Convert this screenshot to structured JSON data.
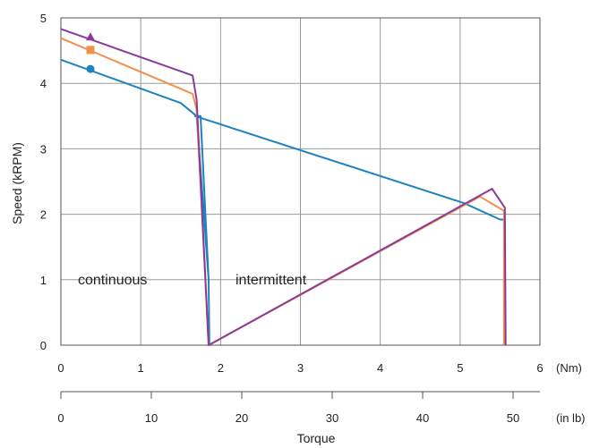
{
  "chart_data": {
    "type": "line",
    "title": "",
    "ylabel": "Speed (kRPM)",
    "xlabel": "Torque",
    "x_unit": "(Nm)",
    "x2_unit": "(in lb)",
    "xlim": [
      0,
      6
    ],
    "ylim": [
      0,
      5
    ],
    "x_ticks": [
      "0",
      "1",
      "2",
      "3",
      "4",
      "5",
      "6"
    ],
    "x2_ticks": [
      "0",
      "10",
      "20",
      "30",
      "40",
      "50"
    ],
    "y_ticks": [
      "0",
      "1",
      "2",
      "3",
      "4",
      "5"
    ],
    "grid": true,
    "annotations": [
      "continuous",
      "intermittent"
    ],
    "series": [
      {
        "color": "#1f82c0",
        "marker": "circle",
        "marker_point": [
          0.37,
          4.22
        ],
        "x": [
          0.0,
          1.5,
          1.7,
          1.85,
          1.86,
          1.85,
          1.75,
          1.68,
          5.05,
          5.5,
          5.55,
          5.55
        ],
        "y": [
          4.36,
          3.7,
          3.5,
          1.0,
          0.0,
          1.0,
          3.5,
          3.5,
          2.17,
          1.92,
          1.92,
          0.0
        ]
      },
      {
        "color": "#f0914c",
        "marker": "square",
        "marker_point": [
          0.37,
          4.51
        ],
        "x": [
          0.0,
          1.65,
          1.7,
          1.85,
          5.25,
          5.55,
          5.55
        ],
        "y": [
          4.69,
          3.84,
          3.6,
          0.0,
          2.27,
          2.05,
          0.0
        ]
      },
      {
        "color": "#8a3a9a",
        "marker": "triangle",
        "marker_point": [
          0.37,
          4.71
        ],
        "x": [
          0.0,
          1.65,
          1.7,
          1.85,
          5.4,
          5.56,
          5.57
        ],
        "y": [
          4.83,
          4.12,
          3.75,
          0.0,
          2.39,
          2.1,
          0.0
        ]
      }
    ]
  }
}
